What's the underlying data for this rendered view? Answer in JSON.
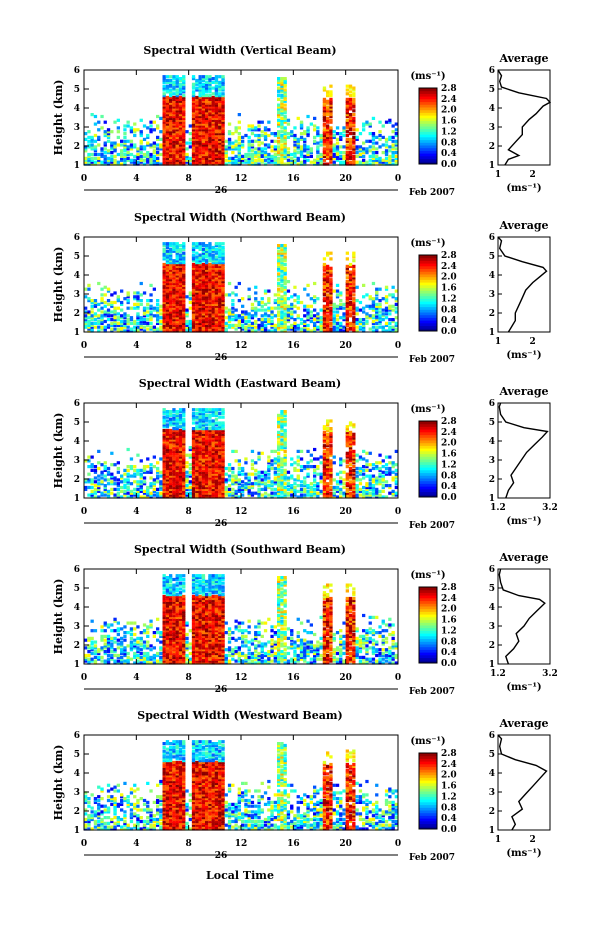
{
  "figure": {
    "bottom_label": "Local Time",
    "date_label": "Feb 2007",
    "day_label": "26"
  },
  "chart_data": [
    {
      "type": "heatmap",
      "title": "Spectral Width (Vertical Beam)",
      "ylabel": "Height (km)",
      "xlabel": "Local Time",
      "xlim": [
        0,
        24
      ],
      "ylim": [
        1,
        6
      ],
      "x_ticks": [
        "0",
        "4",
        "8",
        "12",
        "16",
        "20",
        "0"
      ],
      "y_ticks": [
        "1",
        "2",
        "3",
        "4",
        "5",
        "6"
      ],
      "colorbar": {
        "unit": "(ms⁻¹)",
        "ticks": [
          "0.0",
          "0.4",
          "0.8",
          "1.2",
          "1.6",
          "2.0",
          "2.4",
          "2.8"
        ],
        "range": [
          0,
          2.8
        ]
      },
      "average": {
        "title": "Average",
        "xlabel": "(ms⁻¹)",
        "x_ticks": [
          "1",
          "2"
        ],
        "xlim": [
          1,
          2.5
        ],
        "profile": [
          [
            1.2,
            1.0
          ],
          [
            1.3,
            1.3
          ],
          [
            1.6,
            1.5
          ],
          [
            1.3,
            1.8
          ],
          [
            1.5,
            2.2
          ],
          [
            1.7,
            2.6
          ],
          [
            1.7,
            3.0
          ],
          [
            1.9,
            3.4
          ],
          [
            2.1,
            3.7
          ],
          [
            2.2,
            3.9
          ],
          [
            2.3,
            4.1
          ],
          [
            2.5,
            4.3
          ],
          [
            2.4,
            4.5
          ],
          [
            1.6,
            4.8
          ],
          [
            1.1,
            5.1
          ],
          [
            1.05,
            5.4
          ],
          [
            1.1,
            5.7
          ],
          [
            1.0,
            6.0
          ]
        ]
      }
    },
    {
      "type": "heatmap",
      "title": "Spectral Width (Northward Beam)",
      "ylabel": "Height (km)",
      "xlabel": "Local Time",
      "xlim": [
        0,
        24
      ],
      "ylim": [
        1,
        6
      ],
      "x_ticks": [
        "0",
        "4",
        "8",
        "12",
        "16",
        "20",
        "0"
      ],
      "y_ticks": [
        "1",
        "2",
        "3",
        "4",
        "5",
        "6"
      ],
      "colorbar": {
        "unit": "(ms⁻¹)",
        "ticks": [
          "0.0",
          "0.4",
          "0.8",
          "1.2",
          "1.6",
          "2.0",
          "2.4",
          "2.8"
        ],
        "range": [
          0,
          2.8
        ]
      },
      "average": {
        "title": "Average",
        "xlabel": "(ms⁻¹)",
        "x_ticks": [
          "1",
          "2"
        ],
        "xlim": [
          1,
          2.5
        ],
        "profile": [
          [
            1.3,
            1.0
          ],
          [
            1.4,
            1.3
          ],
          [
            1.5,
            1.6
          ],
          [
            1.5,
            2.0
          ],
          [
            1.6,
            2.4
          ],
          [
            1.7,
            2.8
          ],
          [
            1.8,
            3.2
          ],
          [
            2.0,
            3.6
          ],
          [
            2.2,
            3.9
          ],
          [
            2.4,
            4.2
          ],
          [
            2.3,
            4.4
          ],
          [
            1.7,
            4.7
          ],
          [
            1.2,
            5.0
          ],
          [
            1.05,
            5.4
          ],
          [
            1.1,
            5.8
          ],
          [
            1.0,
            6.0
          ]
        ]
      }
    },
    {
      "type": "heatmap",
      "title": "Spectral Width (Eastward Beam)",
      "ylabel": "Height (km)",
      "xlabel": "Local Time",
      "xlim": [
        0,
        24
      ],
      "ylim": [
        1,
        6
      ],
      "x_ticks": [
        "0",
        "4",
        "8",
        "12",
        "16",
        "20",
        "0"
      ],
      "y_ticks": [
        "1",
        "2",
        "3",
        "4",
        "5",
        "6"
      ],
      "colorbar": {
        "unit": "(ms⁻¹)",
        "ticks": [
          "0.0",
          "0.4",
          "0.8",
          "1.2",
          "1.6",
          "2.0",
          "2.4",
          "2.8"
        ],
        "range": [
          0,
          2.8
        ]
      },
      "average": {
        "title": "Average",
        "xlabel": "(ms⁻¹)",
        "x_ticks": [
          "1.2",
          "3.2"
        ],
        "xlim": [
          1.2,
          3.2
        ],
        "profile": [
          [
            1.5,
            1.0
          ],
          [
            1.6,
            1.4
          ],
          [
            1.8,
            1.8
          ],
          [
            1.7,
            2.2
          ],
          [
            1.9,
            2.6
          ],
          [
            2.1,
            3.0
          ],
          [
            2.3,
            3.4
          ],
          [
            2.6,
            3.8
          ],
          [
            2.9,
            4.2
          ],
          [
            3.1,
            4.5
          ],
          [
            2.2,
            4.7
          ],
          [
            1.5,
            5.0
          ],
          [
            1.3,
            5.4
          ],
          [
            1.25,
            5.8
          ],
          [
            1.3,
            6.0
          ]
        ]
      }
    },
    {
      "type": "heatmap",
      "title": "Spectral Width (Southward Beam)",
      "ylabel": "Height (km)",
      "xlabel": "Local Time",
      "xlim": [
        0,
        24
      ],
      "ylim": [
        1,
        6
      ],
      "x_ticks": [
        "0",
        "4",
        "8",
        "12",
        "16",
        "20",
        "0"
      ],
      "y_ticks": [
        "1",
        "2",
        "3",
        "4",
        "5",
        "6"
      ],
      "colorbar": {
        "unit": "(ms⁻¹)",
        "ticks": [
          "0.0",
          "0.4",
          "0.8",
          "1.2",
          "1.6",
          "2.0",
          "2.4",
          "2.8"
        ],
        "range": [
          0,
          2.8
        ]
      },
      "average": {
        "title": "Average",
        "xlabel": "(ms⁻¹)",
        "x_ticks": [
          "1.2",
          "3.2"
        ],
        "xlim": [
          1.2,
          3.2
        ],
        "profile": [
          [
            1.6,
            1.0
          ],
          [
            1.5,
            1.4
          ],
          [
            1.8,
            1.8
          ],
          [
            2.0,
            2.2
          ],
          [
            1.9,
            2.6
          ],
          [
            2.2,
            3.0
          ],
          [
            2.4,
            3.4
          ],
          [
            2.7,
            3.8
          ],
          [
            3.0,
            4.2
          ],
          [
            2.8,
            4.4
          ],
          [
            2.0,
            4.6
          ],
          [
            1.4,
            4.9
          ],
          [
            1.3,
            5.3
          ],
          [
            1.25,
            5.7
          ],
          [
            1.3,
            6.0
          ]
        ]
      }
    },
    {
      "type": "heatmap",
      "title": "Spectral Width (Westward Beam)",
      "ylabel": "Height (km)",
      "xlabel": "Local Time",
      "xlim": [
        0,
        24
      ],
      "ylim": [
        1,
        6
      ],
      "x_ticks": [
        "0",
        "4",
        "8",
        "12",
        "16",
        "20",
        "0"
      ],
      "y_ticks": [
        "1",
        "2",
        "3",
        "4",
        "5",
        "6"
      ],
      "colorbar": {
        "unit": "(ms⁻¹)",
        "ticks": [
          "0.0",
          "0.4",
          "0.8",
          "1.2",
          "1.6",
          "2.0",
          "2.4",
          "2.8"
        ],
        "range": [
          0,
          2.8
        ]
      },
      "average": {
        "title": "Average",
        "xlabel": "(ms⁻¹)",
        "x_ticks": [
          "1",
          "2"
        ],
        "xlim": [
          1,
          2.5
        ],
        "profile": [
          [
            1.4,
            1.0
          ],
          [
            1.5,
            1.3
          ],
          [
            1.4,
            1.7
          ],
          [
            1.7,
            2.1
          ],
          [
            1.6,
            2.5
          ],
          [
            1.8,
            2.9
          ],
          [
            2.0,
            3.3
          ],
          [
            2.2,
            3.7
          ],
          [
            2.4,
            4.1
          ],
          [
            2.1,
            4.4
          ],
          [
            1.5,
            4.7
          ],
          [
            1.1,
            5.0
          ],
          [
            1.05,
            5.4
          ],
          [
            1.1,
            5.8
          ],
          [
            1.0,
            6.0
          ]
        ]
      }
    }
  ]
}
